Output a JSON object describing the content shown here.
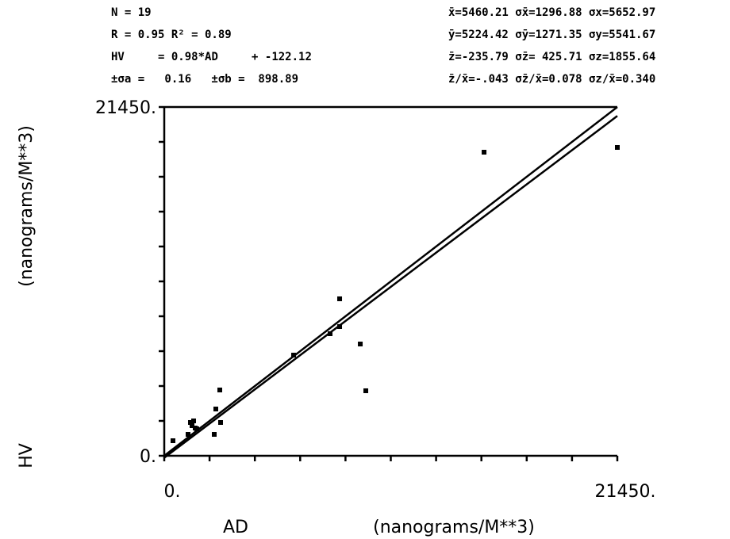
{
  "chart_data": {
    "type": "scatter",
    "stats_left": [
      "N =   19",
      "R = 0.95 R² = 0.89",
      "±σa =   0.16   ±σb =  898.89"
    ],
    "fit": {
      "lhs": "HV     =",
      "slope": 0.98,
      "mid": "*AD     +",
      "intercept": -122.12
    },
    "stats_right": [
      "x̄=5460.21 σx̄=1296.88 σx=5652.97",
      "ȳ=5224.42 σȳ=1271.35 σy=5541.67",
      "z̄=-235.79 σz̄= 425.71 σz=1855.64",
      "z̄/x̄=-.043 σz̄/x̄=0.078 σz/x̄=0.340"
    ],
    "x_label": "AD",
    "x_units": "(nanograms/M**3)",
    "y_label": "HV",
    "y_units": "(nanograms/M**3)",
    "xlim": [
      0,
      21450
    ],
    "ylim": [
      0,
      21450
    ],
    "xticks": [
      {
        "value": 0,
        "label": "0."
      },
      {
        "value": 21450,
        "label": "21450."
      }
    ],
    "yticks": [
      {
        "value": 0,
        "label": "0."
      },
      {
        "value": 21450,
        "label": "21450."
      }
    ],
    "minor_ticks": [
      2145,
      4290,
      6435,
      8580,
      10725,
      12870,
      15015,
      17160,
      19305
    ],
    "identity_line": true,
    "color": "#000000",
    "x": [
      413,
      1127,
      1240,
      1315,
      1390,
      1465,
      1540,
      2367,
      2442,
      2630,
      2667,
      6124,
      7852,
      8303,
      8303,
      9280,
      9543,
      15141,
      21450
    ],
    "y": [
      926,
      1316,
      2048,
      1853,
      2145,
      1706,
      1658,
      1316,
      2876,
      4046,
      2048,
      6191,
      7508,
      7946,
      9653,
      6874,
      3998,
      18671,
      18964
    ]
  }
}
